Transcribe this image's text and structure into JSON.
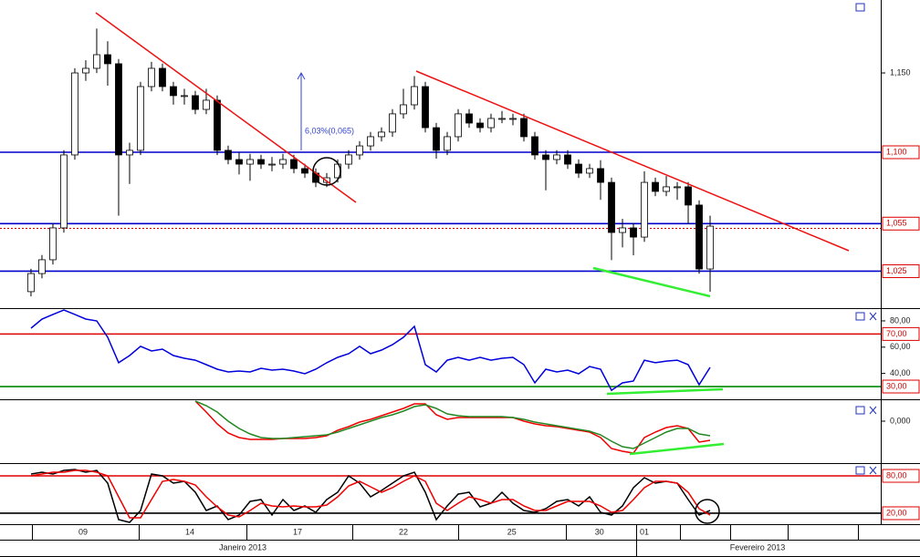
{
  "chart_data": [
    {
      "type": "candlestick",
      "xlim": [
        -2.83,
        77.58
      ],
      "ylim": [
        1.0017,
        1.196
      ],
      "open": [
        1.0121,
        1.0235,
        1.0322,
        1.0523,
        1.0983,
        1.15,
        1.1529,
        1.1615,
        1.1558,
        1.0983,
        1.1012,
        1.1414,
        1.1529,
        1.1414,
        1.1357,
        1.1357,
        1.127,
        1.1328,
        1.1012,
        1.0954,
        1.0925,
        1.0954,
        1.0925,
        1.0925,
        1.0954,
        1.0897,
        1.0868,
        1.081,
        1.0839,
        1.0925,
        1.0983,
        1.104,
        1.1098,
        1.1127,
        1.1242,
        1.1299,
        1.1414,
        1.1155,
        1.1012,
        1.1098,
        1.1242,
        1.1184,
        1.1155,
        1.1213,
        1.1213,
        1.1213,
        1.1098,
        1.0983,
        1.0954,
        1.0983,
        1.0925,
        1.0868,
        1.0897,
        1.081,
        1.0494,
        1.0523,
        1.0465,
        1.081,
        1.0753,
        1.0782,
        1.0782,
        1.0667,
        1.0264
      ],
      "high": [
        1.0265,
        1.0352,
        1.0553,
        1.1013,
        1.153,
        1.158,
        1.178,
        1.17,
        1.1588,
        1.106,
        1.1444,
        1.157,
        1.1559,
        1.1444,
        1.14,
        1.1387,
        1.14,
        1.1358,
        1.1042,
        1.1,
        1.099,
        1.0984,
        1.097,
        1.099,
        1.0984,
        1.0927,
        1.0898,
        1.0869,
        1.0955,
        1.1013,
        1.107,
        1.1128,
        1.1157,
        1.1272,
        1.14,
        1.148,
        1.1444,
        1.1185,
        1.1128,
        1.1272,
        1.1272,
        1.1214,
        1.1243,
        1.126,
        1.1243,
        1.1243,
        1.1128,
        1.1013,
        1.1013,
        1.1013,
        1.0955,
        1.0927,
        1.095,
        1.084,
        1.058,
        1.0553,
        1.088,
        1.084,
        1.085,
        1.0812,
        1.0812,
        1.0697,
        1.06
      ],
      "low": [
        1.0091,
        1.0205,
        1.0292,
        1.0493,
        1.0953,
        1.145,
        1.1499,
        1.142,
        1.06,
        1.08,
        1.0982,
        1.1384,
        1.1384,
        1.13,
        1.13,
        1.124,
        1.124,
        1.0982,
        1.0924,
        1.086,
        1.082,
        1.0895,
        1.088,
        1.0895,
        1.0867,
        1.0838,
        1.078,
        1.078,
        1.0809,
        1.0895,
        1.0953,
        1.101,
        1.1068,
        1.1097,
        1.1212,
        1.1269,
        1.1125,
        1.096,
        1.0982,
        1.1068,
        1.1154,
        1.1125,
        1.1125,
        1.1183,
        1.117,
        1.1068,
        1.0953,
        1.076,
        1.0924,
        1.0895,
        1.0838,
        1.0838,
        1.07,
        1.032,
        1.04,
        1.035,
        1.0435,
        1.0723,
        1.0723,
        1.07,
        1.055,
        1.0234,
        1.012
      ],
      "close": [
        1.0235,
        1.0322,
        1.0523,
        1.0983,
        1.15,
        1.1529,
        1.1615,
        1.1558,
        1.0983,
        1.1012,
        1.1414,
        1.1529,
        1.1414,
        1.1357,
        1.1357,
        1.127,
        1.1328,
        1.1012,
        1.0954,
        1.0925,
        1.0954,
        1.0925,
        1.0925,
        1.0954,
        1.0897,
        1.0868,
        1.081,
        1.0839,
        1.0925,
        1.0983,
        1.104,
        1.1098,
        1.1127,
        1.1242,
        1.1299,
        1.1414,
        1.1155,
        1.1012,
        1.1098,
        1.1242,
        1.1184,
        1.1155,
        1.1213,
        1.1213,
        1.1213,
        1.1098,
        1.0983,
        1.0954,
        1.0983,
        1.0925,
        1.0868,
        1.0897,
        1.081,
        1.0494,
        1.0523,
        1.0465,
        1.081,
        1.0753,
        1.0782,
        1.0782,
        1.0667,
        1.0264,
        1.0534
      ],
      "up_color": "#ffffff",
      "down_color": "#000000",
      "yticks": [
        {
          "value": 1.15,
          "label": "1,150"
        }
      ],
      "hlines": [
        {
          "value": 1.1,
          "label": "1,100",
          "color": "#0000cc"
        },
        {
          "value": 1.055,
          "label": "1,055",
          "color": "#0000cc"
        },
        {
          "value": 1.025,
          "label": "1,025",
          "color": "#0000cc"
        },
        {
          "value": 1.052,
          "color": "#cc0000",
          "dash": true
        }
      ],
      "annotation": "6,03%(0,065)"
    },
    {
      "type": "line",
      "xlim": [
        -2.83,
        77.58
      ],
      "ylim": [
        20.3,
        89.7
      ],
      "series": [
        {
          "color": "#0000dd",
          "values": [
            74.4,
            81.4,
            84.9,
            88.3,
            84.9,
            81.4,
            80.0,
            67.5,
            48.1,
            53.6,
            60.6,
            57.1,
            58.5,
            53.6,
            51.5,
            50.1,
            46.7,
            43.2,
            41.1,
            41.8,
            41.1,
            43.9,
            42.5,
            43.2,
            41.8,
            39.7,
            43.2,
            48.1,
            52.2,
            55.0,
            60.6,
            55.0,
            57.8,
            61.9,
            67.5,
            75.8,
            46.7,
            41.1,
            50.1,
            52.2,
            50.1,
            52.2,
            50.1,
            51.5,
            52.2,
            46.7,
            32.8,
            43.2,
            41.1,
            42.5,
            39.7,
            45.3,
            43.2,
            27.2,
            32.8,
            34.2,
            50.1,
            48.1,
            49.4,
            50.1,
            46.7,
            31.4,
            44.6
          ]
        }
      ],
      "yticks": [
        {
          "value": 80,
          "label": "80,00"
        },
        {
          "value": 60,
          "label": "60,00"
        },
        {
          "value": 40,
          "label": "40,00"
        }
      ],
      "hlines": [
        {
          "value": 70,
          "label": "70,00",
          "color": "#dd0000"
        },
        {
          "value": 30,
          "label": "30,00",
          "color": "#008800"
        }
      ]
    },
    {
      "type": "line",
      "xlim": [
        -2.83,
        77.58
      ],
      "ylim": [
        -0.023,
        0.012
      ],
      "series": [
        {
          "color": "#ee0000",
          "values": [
            null,
            null,
            null,
            null,
            null,
            null,
            null,
            null,
            null,
            null,
            null,
            null,
            null,
            null,
            null,
            0.011,
            0.005,
            -0.0015,
            -0.0065,
            -0.009,
            -0.01,
            -0.01,
            -0.01,
            -0.0095,
            -0.0095,
            -0.0095,
            -0.009,
            -0.008,
            -0.005,
            -0.003,
            -0.0005,
            0.001,
            0.003,
            0.005,
            0.007,
            0.0095,
            0.0095,
            0.0035,
            0.001,
            0.002,
            0.002,
            0.002,
            0.002,
            0.002,
            0.002,
            0,
            -0.0015,
            -0.0025,
            -0.003,
            -0.004,
            -0.005,
            -0.006,
            -0.009,
            -0.015,
            -0.0165,
            -0.0175,
            -0.009,
            -0.006,
            -0.0035,
            -0.0025,
            -0.004,
            -0.0115,
            -0.0105
          ]
        },
        {
          "color": "#228822",
          "values": [
            null,
            null,
            null,
            null,
            null,
            null,
            null,
            null,
            null,
            null,
            null,
            null,
            null,
            null,
            null,
            0.011,
            0.0085,
            0.005,
            0,
            -0.004,
            -0.007,
            -0.009,
            -0.0095,
            -0.0095,
            -0.009,
            -0.0085,
            -0.008,
            -0.0075,
            -0.006,
            -0.004,
            -0.002,
            0,
            0.002,
            0.0035,
            0.0055,
            0.008,
            0.009,
            0.007,
            0.004,
            0.003,
            0.0025,
            0.0025,
            0.0025,
            0.0025,
            0.002,
            0.001,
            -0.0005,
            -0.0015,
            -0.0025,
            -0.0035,
            -0.0045,
            -0.0055,
            -0.0075,
            -0.011,
            -0.014,
            -0.015,
            -0.012,
            -0.009,
            -0.006,
            -0.004,
            -0.004,
            -0.007,
            -0.008
          ]
        }
      ],
      "yticks": [
        {
          "value": 0,
          "label": "0,000"
        }
      ]
    },
    {
      "type": "line",
      "xlim": [
        -2.83,
        77.58
      ],
      "ylim": [
        2.4,
        100.5
      ],
      "series": [
        {
          "color": "#000000",
          "values": [
            82.9,
            85.9,
            82.9,
            88.8,
            90.2,
            85.9,
            88.8,
            68.3,
            9.7,
            5.3,
            24.4,
            82.9,
            80,
            68.3,
            71.2,
            53.6,
            24.4,
            31.7,
            9.7,
            17.0,
            39.0,
            41.9,
            17.0,
            41.9,
            24.4,
            31.7,
            21.4,
            41.9,
            53.6,
            80,
            68.3,
            46.3,
            56.6,
            68.3,
            80,
            85.9,
            53.6,
            9.7,
            31.7,
            50.7,
            53.6,
            30.2,
            36.1,
            53.6,
            36.1,
            24.4,
            21.4,
            27.3,
            39.0,
            41.9,
            31.7,
            46.3,
            21.4,
            17.0,
            31.7,
            61.0,
            77.1,
            68.3,
            71.2,
            68.3,
            41.9,
            17.0,
            24.4
          ]
        },
        {
          "color": "#ee0000",
          "values": [
            80,
            82.9,
            85.9,
            85.9,
            88.8,
            88.8,
            85.9,
            80,
            46.3,
            12.7,
            12.7,
            41.9,
            71.2,
            74.1,
            71.2,
            65.4,
            46.3,
            30.2,
            17.0,
            14.1,
            24.4,
            36.1,
            31.7,
            30.2,
            31.7,
            30.2,
            30.2,
            33.2,
            46.3,
            63.9,
            71.2,
            62.4,
            53.6,
            61.0,
            71.2,
            80,
            71.2,
            36.1,
            24.4,
            36.1,
            46.3,
            41.9,
            36.1,
            41.9,
            41.9,
            31.7,
            24.4,
            24.4,
            31.7,
            39.0,
            39.0,
            39.0,
            31.7,
            21.4,
            24.4,
            41.9,
            61.0,
            71.2,
            71.2,
            68.3,
            53.6,
            27.3,
            17.0
          ]
        }
      ],
      "hlines": [
        {
          "value": 80,
          "label": "80,00",
          "color": "#dd0000"
        },
        {
          "value": 20,
          "label": "20,00",
          "color": "#000000"
        }
      ],
      "xticks": [
        {
          "value": 4.75,
          "label": "09"
        },
        {
          "value": 14.5,
          "label": "14"
        },
        {
          "value": 24.33,
          "label": "17"
        },
        {
          "value": 34,
          "label": "22"
        },
        {
          "value": 43.9,
          "label": "25"
        },
        {
          "value": 51.9,
          "label": "30"
        },
        {
          "value": 56,
          "label": "01"
        }
      ],
      "x_group_labels": [
        "Janeiro 2013",
        "Fevereiro 2013"
      ]
    }
  ]
}
